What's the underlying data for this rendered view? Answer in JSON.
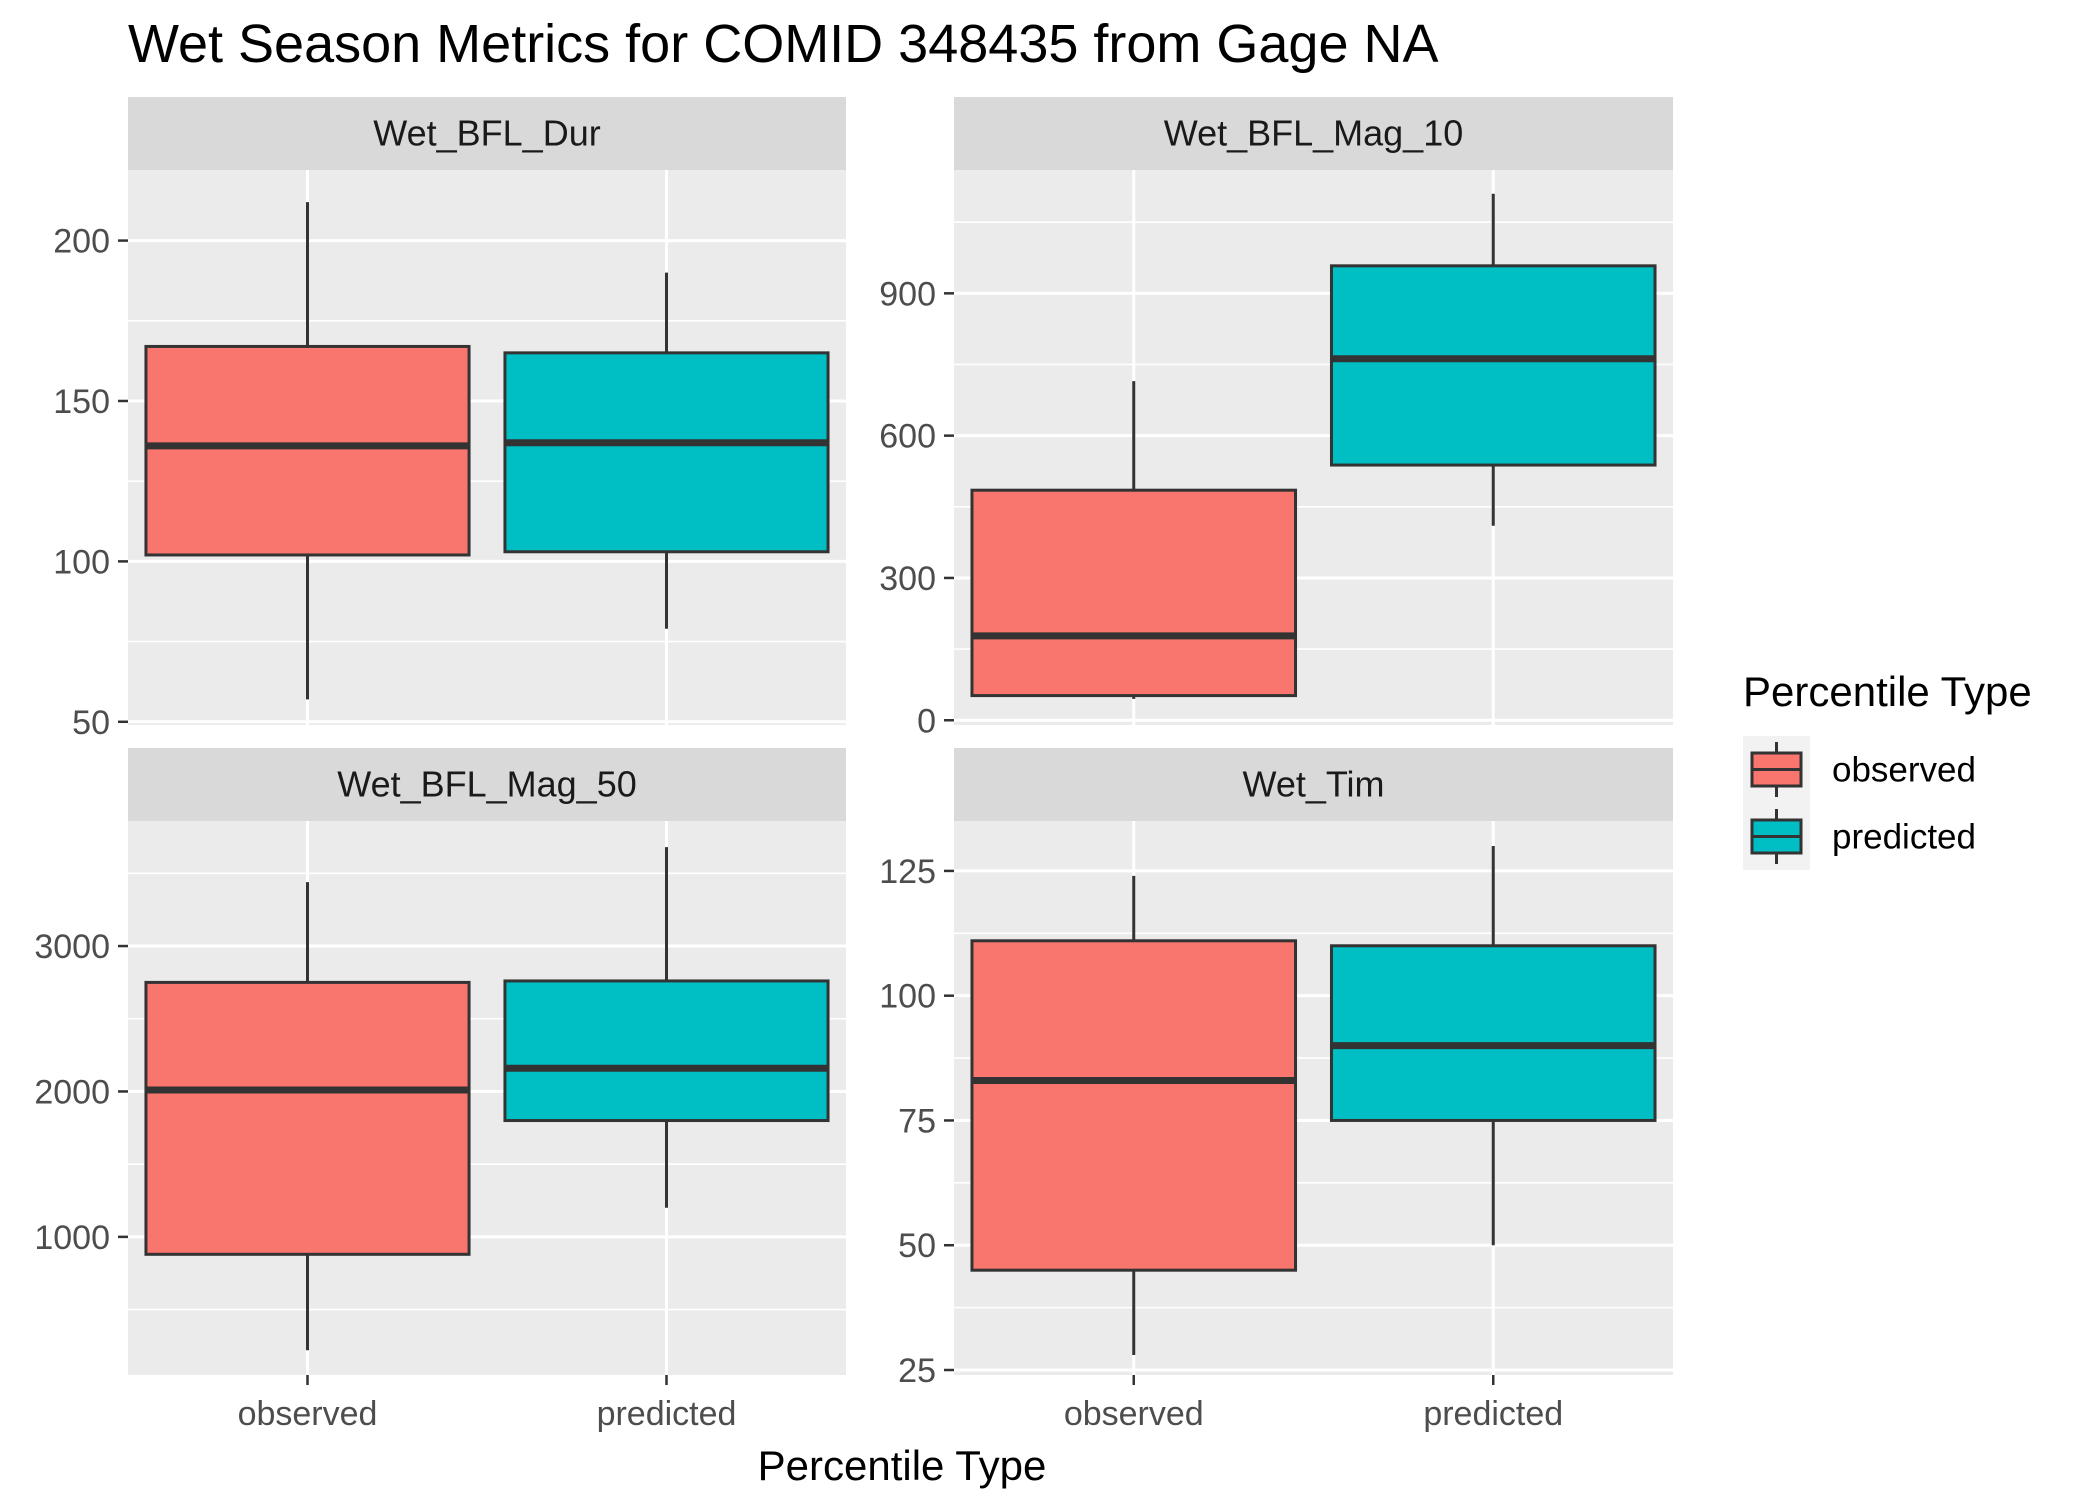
{
  "chart_data": {
    "type": "boxplot",
    "title": "Wet Season Metrics for COMID 348435 from Gage NA",
    "xlabel": "Percentile Type",
    "ylabel": "",
    "categories": [
      "observed",
      "predicted"
    ],
    "colors": {
      "observed": "#F8766D",
      "predicted": "#00BFC4"
    },
    "legend": {
      "title": "Percentile Type",
      "position": "right",
      "items": [
        "observed",
        "predicted"
      ]
    },
    "grid": true,
    "facets": [
      {
        "name": "Wet_BFL_Dur",
        "ylim": [
          49,
          222
        ],
        "yticks": [
          50,
          100,
          150,
          200
        ],
        "boxes": [
          {
            "category": "observed",
            "min": 57,
            "q1": 102,
            "median": 136,
            "q3": 167,
            "max": 212
          },
          {
            "category": "predicted",
            "min": 79,
            "q1": 103,
            "median": 137,
            "q3": 165,
            "max": 190
          }
        ]
      },
      {
        "name": "Wet_BFL_Mag_10",
        "ylim": [
          -10,
          1160
        ],
        "yticks": [
          0,
          300,
          600,
          900
        ],
        "boxes": [
          {
            "category": "observed",
            "min": 45,
            "q1": 52,
            "median": 178,
            "q3": 485,
            "max": 715
          },
          {
            "category": "predicted",
            "min": 410,
            "q1": 538,
            "median": 762,
            "q3": 958,
            "max": 1110
          }
        ]
      },
      {
        "name": "Wet_BFL_Mag_50",
        "ylim": [
          50,
          3860
        ],
        "yticks": [
          1000,
          2000,
          3000
        ],
        "boxes": [
          {
            "category": "observed",
            "min": 220,
            "q1": 880,
            "median": 2010,
            "q3": 2750,
            "max": 3440
          },
          {
            "category": "predicted",
            "min": 1200,
            "q1": 1800,
            "median": 2160,
            "q3": 2760,
            "max": 3680
          }
        ]
      },
      {
        "name": "Wet_Tim",
        "ylim": [
          24,
          135
        ],
        "yticks": [
          25,
          50,
          75,
          100,
          125
        ],
        "boxes": [
          {
            "category": "observed",
            "min": 28,
            "q1": 45,
            "median": 83,
            "q3": 111,
            "max": 124
          },
          {
            "category": "predicted",
            "min": 50,
            "q1": 75,
            "median": 90,
            "q3": 110,
            "max": 130
          }
        ]
      }
    ]
  }
}
